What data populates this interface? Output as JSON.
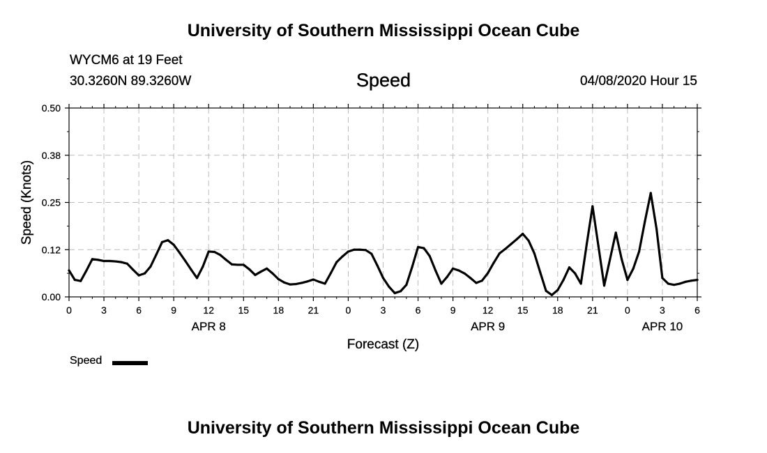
{
  "header": {
    "title": "University of Southern Mississippi Ocean Cube",
    "station": "WYCM6 at 19 Feet",
    "coords": "30.3260N 89.3260W",
    "variable": "Speed",
    "datetime": "04/08/2020 Hour 15"
  },
  "footer": {
    "title": "University of Southern Mississippi Ocean Cube"
  },
  "legend": {
    "label": "Speed"
  },
  "colors": {
    "line": "#000000",
    "grid": "#bbbbbb",
    "axis": "#000000",
    "background": "#ffffff"
  },
  "chart_data": {
    "type": "line",
    "title": "Speed",
    "xlabel": "Forecast (Z)",
    "ylabel": "Speed (Knots)",
    "ylim": [
      0,
      0.5
    ],
    "xlim": [
      0,
      54
    ],
    "yticks": [
      0.0,
      0.125,
      0.25,
      0.375,
      0.5
    ],
    "ytick_labels": [
      "0.00",
      "0.12",
      "0.25",
      "0.38",
      "0.50"
    ],
    "xticks": [
      0,
      3,
      6,
      9,
      12,
      15,
      18,
      21,
      24,
      27,
      30,
      33,
      36,
      39,
      42,
      45,
      48,
      51,
      54
    ],
    "xtick_labels": [
      "0",
      "3",
      "6",
      "9",
      "12",
      "15",
      "18",
      "21",
      "0",
      "3",
      "6",
      "9",
      "12",
      "15",
      "18",
      "21",
      "0",
      "3",
      "6"
    ],
    "date_labels": [
      {
        "hour": 12,
        "label": "APR 8"
      },
      {
        "hour": 36,
        "label": "APR 9"
      },
      {
        "hour": 51,
        "label": "APR 10"
      }
    ],
    "grid": true,
    "legend_position": "bottom-left",
    "series": [
      {
        "name": "Speed",
        "x": [
          0,
          0.5,
          1,
          1.5,
          2,
          2.5,
          3,
          3.5,
          4,
          4.5,
          5,
          5.5,
          6,
          6.5,
          7,
          7.5,
          8,
          8.5,
          9,
          9.5,
          10,
          10.5,
          11,
          11.5,
          12,
          12.5,
          13,
          13.5,
          14,
          14.5,
          15,
          15.5,
          16,
          16.5,
          17,
          17.5,
          18,
          18.5,
          19,
          19.5,
          20,
          20.5,
          21,
          21.5,
          22,
          22.5,
          23,
          23.5,
          24,
          24.5,
          25,
          25.5,
          26,
          26.5,
          27,
          27.5,
          28,
          28.5,
          29,
          29.5,
          30,
          30.5,
          31,
          31.5,
          32,
          32.5,
          33,
          33.5,
          34,
          34.5,
          35,
          35.5,
          36,
          36.5,
          37,
          37.5,
          38,
          38.5,
          39,
          39.5,
          40,
          40.5,
          41,
          41.5,
          42,
          42.5,
          43,
          43.5,
          44,
          44.5,
          45,
          45.5,
          46,
          46.5,
          47,
          47.5,
          48,
          48.5,
          49,
          49.5,
          50,
          50.5,
          51,
          51.5,
          52,
          52.5,
          53,
          53.5,
          54
        ],
        "values": [
          0.07,
          0.045,
          0.042,
          0.07,
          0.1,
          0.098,
          0.095,
          0.095,
          0.094,
          0.092,
          0.088,
          0.072,
          0.057,
          0.062,
          0.08,
          0.112,
          0.145,
          0.15,
          0.138,
          0.117,
          0.095,
          0.072,
          0.05,
          0.08,
          0.12,
          0.119,
          0.111,
          0.098,
          0.086,
          0.085,
          0.085,
          0.073,
          0.058,
          0.067,
          0.075,
          0.062,
          0.047,
          0.038,
          0.033,
          0.034,
          0.037,
          0.041,
          0.046,
          0.04,
          0.035,
          0.063,
          0.092,
          0.107,
          0.12,
          0.125,
          0.125,
          0.124,
          0.114,
          0.083,
          0.05,
          0.027,
          0.01,
          0.015,
          0.032,
          0.08,
          0.132,
          0.129,
          0.108,
          0.07,
          0.035,
          0.053,
          0.075,
          0.07,
          0.062,
          0.05,
          0.037,
          0.043,
          0.063,
          0.09,
          0.115,
          0.127,
          0.14,
          0.153,
          0.167,
          0.149,
          0.115,
          0.065,
          0.016,
          0.005,
          0.018,
          0.045,
          0.078,
          0.062,
          0.035,
          0.14,
          0.24,
          0.135,
          0.03,
          0.1,
          0.17,
          0.1,
          0.045,
          0.075,
          0.12,
          0.2,
          0.275,
          0.18,
          0.05,
          0.035,
          0.032,
          0.035,
          0.04,
          0.043,
          0.045
        ]
      }
    ]
  }
}
